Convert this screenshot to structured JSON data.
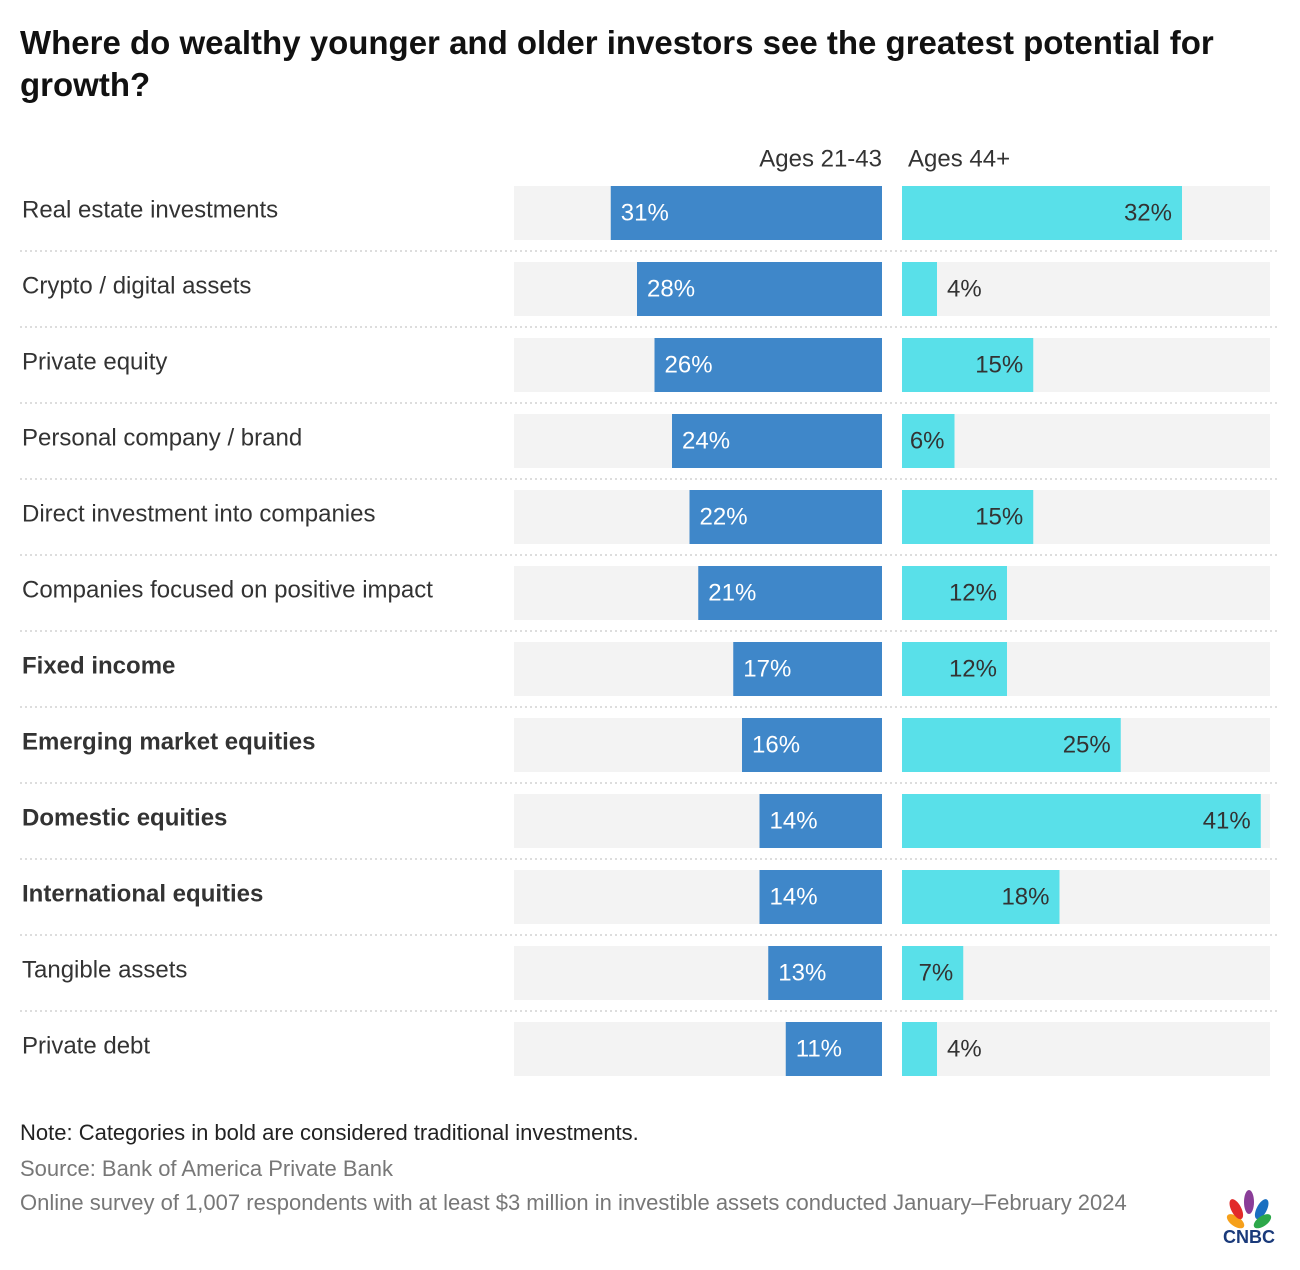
{
  "chart_data": {
    "type": "bar",
    "title": "Where do wealthy younger and older investors see the greatest potential for growth?",
    "categories": [
      "Real estate investments",
      "Crypto / digital assets",
      "Private equity",
      "Personal company / brand",
      "Direct investment into companies",
      "Companies focused on positive impact",
      "Fixed income",
      "Emerging market equities",
      "Domestic equities",
      "International equities",
      "Tangible assets",
      "Private debt"
    ],
    "bold": [
      false,
      false,
      false,
      false,
      false,
      false,
      true,
      true,
      true,
      true,
      false,
      false
    ],
    "series": [
      {
        "name": "Ages 21-43",
        "color": "#3f87c9",
        "values": [
          31,
          28,
          26,
          24,
          22,
          21,
          17,
          16,
          14,
          14,
          13,
          11
        ],
        "value_labels": [
          "31%",
          "28%",
          "26%",
          "24%",
          "22%",
          "21%",
          "17%",
          "16%",
          "14%",
          "14%",
          "13%",
          "11%"
        ]
      },
      {
        "name": "Ages 44+",
        "color": "#59e0e9",
        "values": [
          32,
          4,
          15,
          6,
          15,
          12,
          12,
          25,
          41,
          18,
          7,
          4
        ],
        "value_labels": [
          "32%",
          "4%",
          "15%",
          "6%",
          "15%",
          "12%",
          "12%",
          "25%",
          "41%",
          "18%",
          "7%",
          "4%"
        ]
      }
    ],
    "note": "Note: Categories in bold are considered traditional investments.",
    "source": "Source: Bank of America Private Bank",
    "survey": "Online survey of 1,007 respondents with at least $3 million in investible assets conducted January–February 2024",
    "logo": "CNBC"
  }
}
